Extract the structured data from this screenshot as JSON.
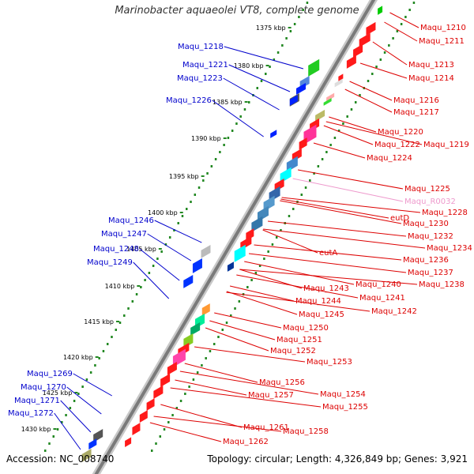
{
  "title": "Marinobacter aquaeolei VT8, complete genome",
  "accession": "Accession: NC_008740",
  "topology": "Topology: circular; Length: 4,326,849 bp; Genes: 3,921",
  "colors": {
    "forward_label": "#0000cc",
    "reverse_label": "#dd0000",
    "rna_label": "#ee99cc",
    "backbone": "#888888",
    "tick_dots": "#228822"
  },
  "kbp_marks": [
    "1375 kbp",
    "1380 kbp",
    "1385 kbp",
    "1390 kbp",
    "1395 kbp",
    "1400 kbp",
    "1405 kbp",
    "1410 kbp",
    "1415 kbp",
    "1420 kbp",
    "1425 kbp",
    "1430 kbp"
  ],
  "left_labels": [
    "Maqu_1218",
    "Maqu_1221",
    "Maqu_1223",
    "Maqu_1226",
    "Maqu_1246",
    "Maqu_1247",
    "Maqu_1248",
    "Maqu_1249",
    "Maqu_1269",
    "Maqu_1270",
    "Maqu_1271",
    "Maqu_1272"
  ],
  "right_labels": [
    "Maqu_1210",
    "Maqu_1211",
    "Maqu_1213",
    "Maqu_1214",
    "Maqu_1216",
    "Maqu_1217",
    "Maqu_1220",
    "Maqu_1222",
    "Maqu_1219",
    "Maqu_1224",
    "Maqu_1225",
    "Maqu_R0032",
    "Maqu_1228",
    "eutD",
    "Maqu_1230",
    "Maqu_1232",
    "Maqu_1234",
    "eutA",
    "Maqu_1236",
    "Maqu_1237",
    "Maqu_1240",
    "Maqu_1238",
    "Maqu_1243",
    "Maqu_1241",
    "Maqu_1244",
    "Maqu_1242",
    "Maqu_1245",
    "Maqu_1250",
    "Maqu_1251",
    "Maqu_1252",
    "Maqu_1253",
    "Maqu_1256",
    "Maqu_1254",
    "Maqu_1257",
    "Maqu_1255",
    "Maqu_1261",
    "Maqu_1258",
    "Maqu_1262"
  ]
}
